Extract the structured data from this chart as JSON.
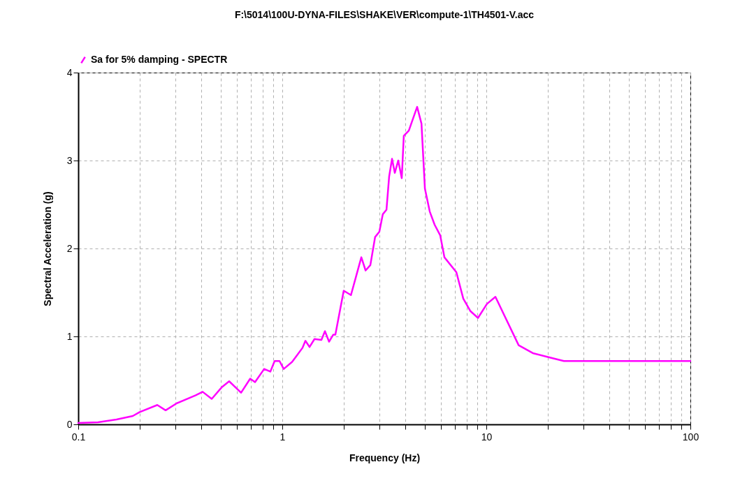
{
  "chart_data": {
    "type": "line",
    "title": "F:\\5014\\100U-DYNA-FILES\\SHAKE\\VER\\compute-1\\TH4501-V.acc",
    "xlabel": "Frequency (Hz)",
    "ylabel": "Spectral Acceleration (g)",
    "log": "x",
    "grid": true,
    "legend": "top",
    "marker": "none",
    "line_style": "solid",
    "xlim": [
      0.1,
      100
    ],
    "ylim": [
      0,
      4
    ],
    "xticks": [
      0.1,
      {
        "value": 0.2,
        "label": null
      },
      {
        "value": 0.3,
        "label": null
      },
      {
        "value": 0.4,
        "label": null
      },
      {
        "value": 0.5,
        "label": null
      },
      {
        "value": 0.6,
        "label": null
      },
      {
        "value": 0.7,
        "label": null
      },
      {
        "value": 0.8,
        "label": null
      },
      {
        "value": 0.9,
        "label": null
      },
      1,
      {
        "value": 2,
        "label": null
      },
      {
        "value": 3,
        "label": null
      },
      {
        "value": 4,
        "label": null
      },
      {
        "value": 5,
        "label": null
      },
      {
        "value": 6,
        "label": null
      },
      {
        "value": 7,
        "label": null
      },
      {
        "value": 8,
        "label": null
      },
      {
        "value": 9,
        "label": null
      },
      10,
      {
        "value": 20,
        "label": null
      },
      {
        "value": 30,
        "label": null
      },
      {
        "value": 40,
        "label": null
      },
      {
        "value": 50,
        "label": null
      },
      {
        "value": 60,
        "label": null
      },
      {
        "value": 70,
        "label": null
      },
      {
        "value": 80,
        "label": null
      },
      {
        "value": 90,
        "label": null
      },
      100
    ],
    "yticks": [
      0,
      1,
      2,
      3,
      4
    ],
    "series": [
      {
        "name": "Sa for 5% damping - SPECTR",
        "color": "#ff00ff",
        "x": [
          0.1,
          0.125,
          0.154,
          0.185,
          0.2,
          0.244,
          0.268,
          0.304,
          0.376,
          0.407,
          0.451,
          0.504,
          0.549,
          0.628,
          0.696,
          0.735,
          0.815,
          0.874,
          0.917,
          0.969,
          1.016,
          1.117,
          1.256,
          1.298,
          1.36,
          1.438,
          1.555,
          1.618,
          1.695,
          1.778,
          1.82,
          2.0,
          2.17,
          2.44,
          2.56,
          2.7,
          2.85,
          2.99,
          3.11,
          3.24,
          3.34,
          3.45,
          3.56,
          3.7,
          3.85,
          3.94,
          4.17,
          4.58,
          4.81,
          5.0,
          5.28,
          5.58,
          5.94,
          6.23,
          7.13,
          7.71,
          8.34,
          9.1,
          10.07,
          11.08,
          14.4,
          16.9,
          20.5,
          24.0,
          100
        ],
        "values": [
          0.016,
          0.024,
          0.056,
          0.095,
          0.14,
          0.22,
          0.16,
          0.24,
          0.33,
          0.37,
          0.29,
          0.42,
          0.49,
          0.36,
          0.52,
          0.48,
          0.63,
          0.6,
          0.72,
          0.72,
          0.63,
          0.71,
          0.87,
          0.95,
          0.88,
          0.97,
          0.96,
          1.06,
          0.94,
          1.02,
          1.02,
          1.52,
          1.47,
          1.9,
          1.75,
          1.81,
          2.13,
          2.19,
          2.39,
          2.44,
          2.82,
          3.02,
          2.86,
          3.0,
          2.8,
          3.28,
          3.34,
          3.61,
          3.42,
          2.68,
          2.42,
          2.27,
          2.15,
          1.9,
          1.73,
          1.43,
          1.29,
          1.21,
          1.37,
          1.45,
          0.9,
          0.81,
          0.76,
          0.72,
          0.72
        ]
      }
    ]
  }
}
